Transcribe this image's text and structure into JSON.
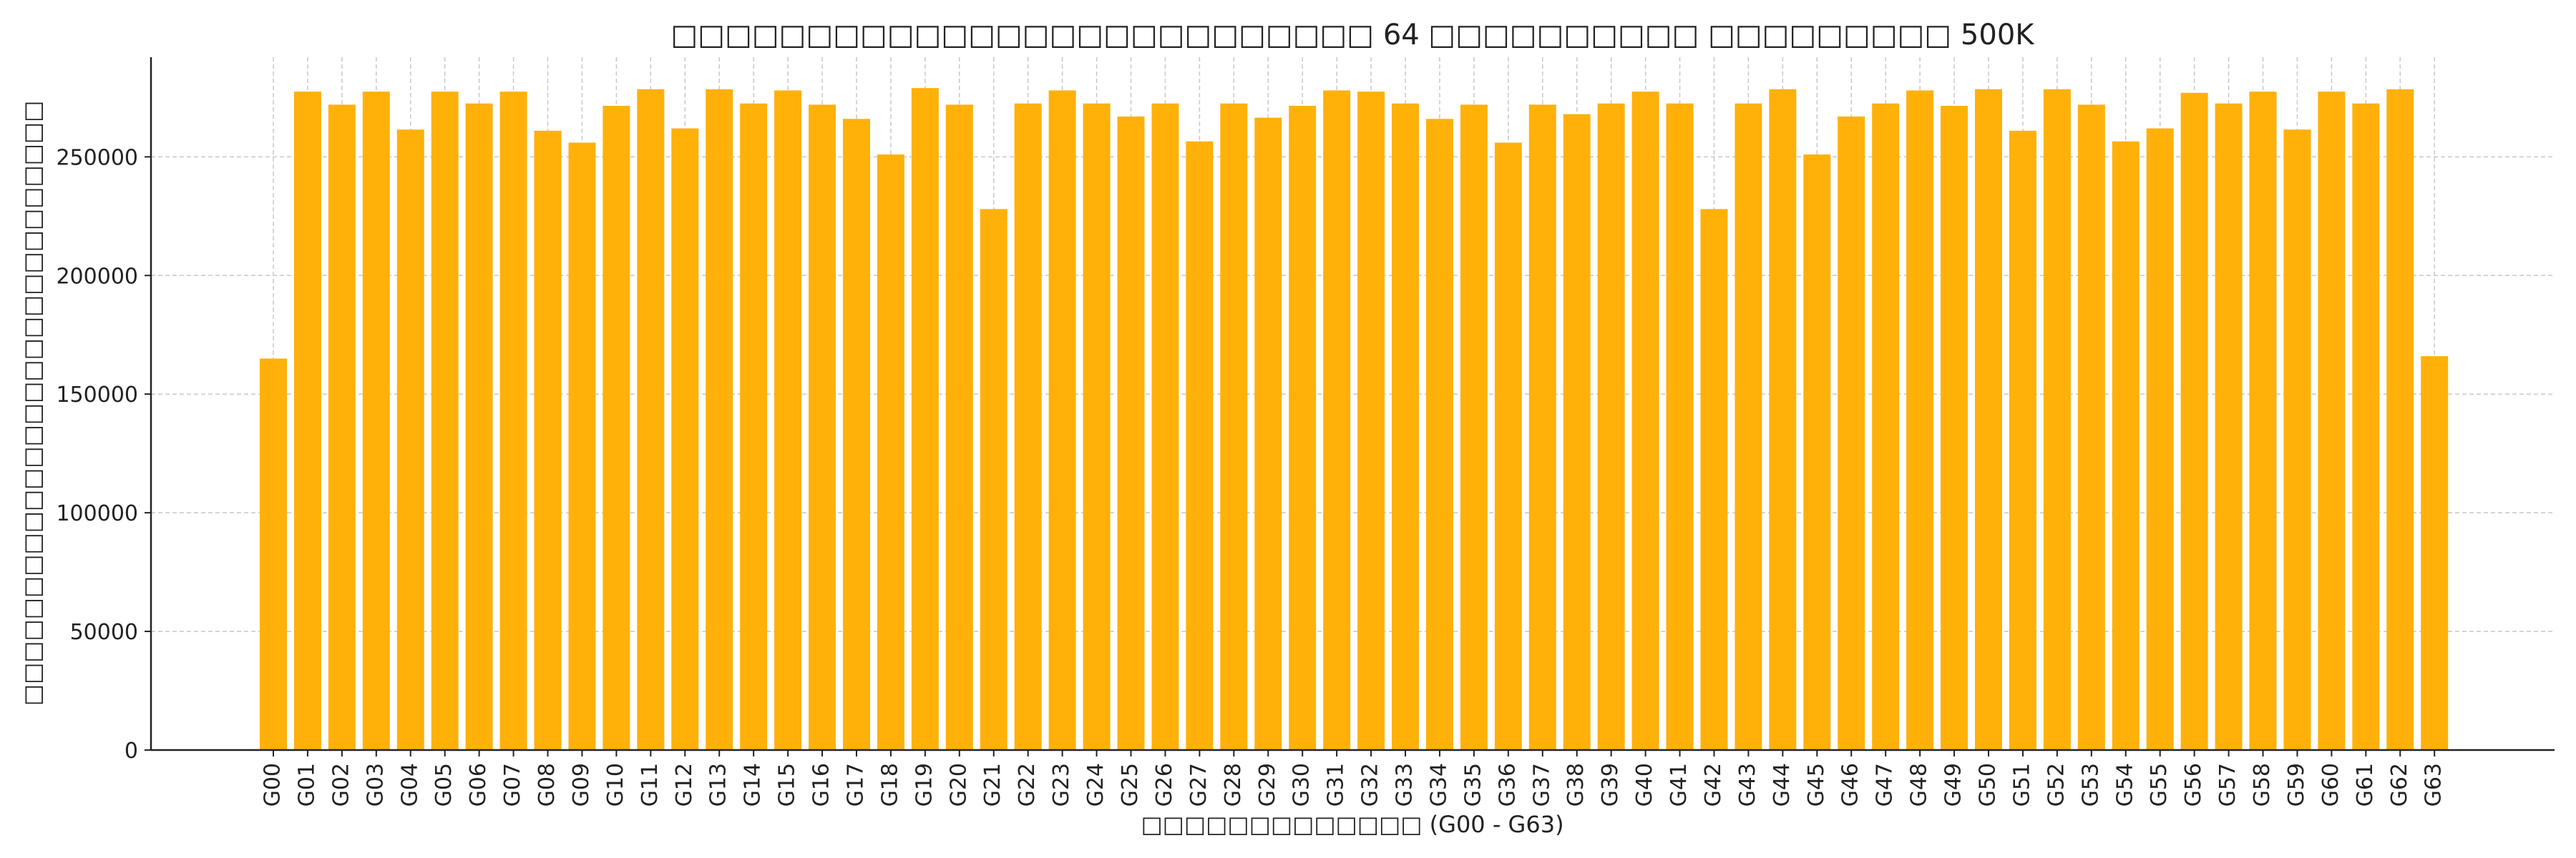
{
  "chart_data": {
    "type": "bar",
    "title": "□□□□□□□□□□□□□□□□□□□□□□□□□□ 64 □□□□□□□□□□ □□□□□□□□□ 500K",
    "xlabel": "□□□□□□□□□□□□□ (G00 - G63)",
    "ylabel": "□□□□□□□□□□□□□□□□□□□□□□□□□□□□",
    "ylim": [
      0,
      292000
    ],
    "yticks": [
      0,
      50000,
      100000,
      150000,
      200000,
      250000
    ],
    "grid": true,
    "bar_color": "#FFB10A",
    "categories": [
      "G00",
      "G01",
      "G02",
      "G03",
      "G04",
      "G05",
      "G06",
      "G07",
      "G08",
      "G09",
      "G10",
      "G11",
      "G12",
      "G13",
      "G14",
      "G15",
      "G16",
      "G17",
      "G18",
      "G19",
      "G20",
      "G21",
      "G22",
      "G23",
      "G24",
      "G25",
      "G26",
      "G27",
      "G28",
      "G29",
      "G30",
      "G31",
      "G32",
      "G33",
      "G34",
      "G35",
      "G36",
      "G37",
      "G38",
      "G39",
      "G40",
      "G41",
      "G42",
      "G43",
      "G44",
      "G45",
      "G46",
      "G47",
      "G48",
      "G49",
      "G50",
      "G51",
      "G52",
      "G53",
      "G54",
      "G55",
      "G56",
      "G57",
      "G58",
      "G59",
      "G60",
      "G61",
      "G62",
      "G63"
    ],
    "values": [
      165000,
      277500,
      272000,
      277500,
      261500,
      277500,
      272500,
      277500,
      261000,
      256000,
      271500,
      278500,
      262000,
      278500,
      272500,
      278000,
      272000,
      266000,
      251000,
      279000,
      272000,
      228000,
      272500,
      278000,
      272500,
      267000,
      272500,
      256500,
      272500,
      266500,
      271500,
      278000,
      277500,
      272500,
      266000,
      272000,
      256000,
      272000,
      268000,
      272500,
      277500,
      272500,
      228000,
      272500,
      278500,
      251000,
      267000,
      272500,
      278000,
      271500,
      278500,
      261000,
      278500,
      272000,
      256500,
      262000,
      277000,
      272500,
      277500,
      261500,
      277500,
      272500,
      278500,
      166000
    ]
  }
}
